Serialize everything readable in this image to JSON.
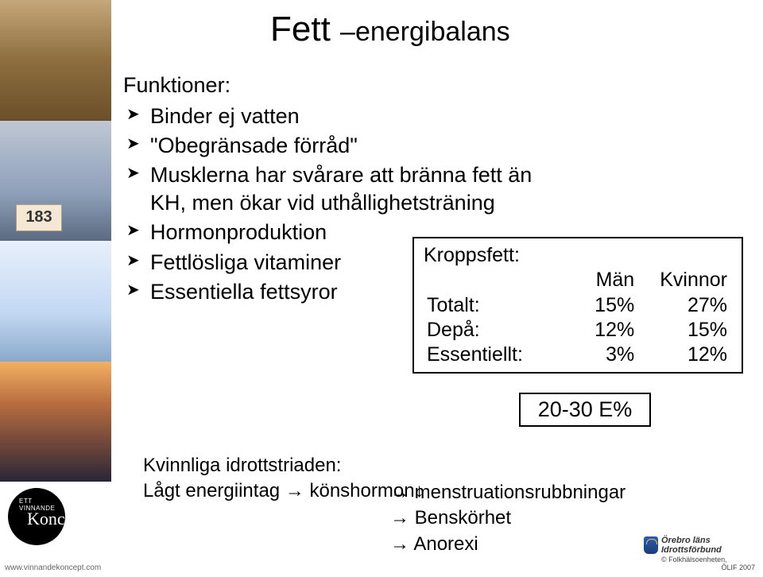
{
  "title": {
    "big": "Fett ",
    "small": "–energibalans"
  },
  "functions": {
    "heading": "Funktioner:",
    "items": [
      "Binder ej vatten",
      "\"Obegränsade förråd\"",
      "Musklerna har svårare att bränna fett än KH, men ökar vid uthållighetsträning",
      "Hormonproduktion",
      "Fettlösliga vitaminer",
      "Essentiella fettsyror"
    ]
  },
  "kroppsfett": {
    "heading": "Kroppsfett:",
    "col_men": "Män",
    "col_kv": "Kvinnor",
    "rows": [
      {
        "label": "Totalt:",
        "men": "15%",
        "kv": "27%"
      },
      {
        "label": "Depå:",
        "men": "12%",
        "kv": "15%"
      },
      {
        "label": "Essentiellt:",
        "men": "3%",
        "kv": "12%"
      }
    ]
  },
  "energy_box": "20-30 E%",
  "triad": {
    "heading": "Kvinnliga idrottstriaden:",
    "line2_left": "Lågt energiintag → könshormon↓",
    "cont": [
      "→ menstruationsrubbningar",
      "→ Benskörhet",
      "→ Anorexi"
    ]
  },
  "left_logo": {
    "top_line": "ETT VINNANDE",
    "script": "Koncept",
    "url": "www.vinnandekoncept.com"
  },
  "bib_number": "183",
  "footer": {
    "name_line1": "Örebro läns",
    "name_line2": "Idrottsförbund",
    "sub": "© Folkhälsoenheten,",
    "year": "ÖLIF 2007"
  },
  "colors": {
    "text": "#000000",
    "box_border": "#000000",
    "background": "#ffffff"
  }
}
